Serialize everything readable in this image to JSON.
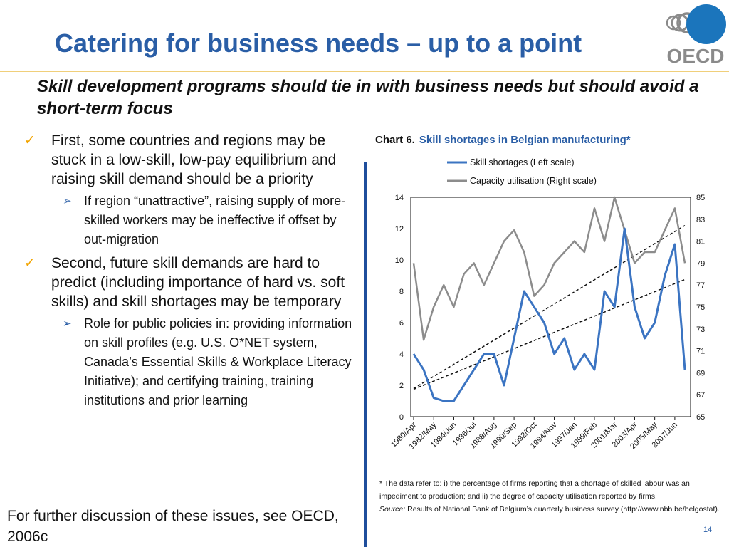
{
  "header": {
    "title": "Catering for business needs – up to a point",
    "logo_text": "OECD"
  },
  "subtitle": "Skill development programs should tie in with business needs but should avoid a short-term focus",
  "bullets": [
    {
      "text": "First, some countries and regions may be stuck in a low-skill, low-pay equilibrium and raising skill demand should be a priority",
      "sub": [
        "If region “unattractive”, raising supply of more-skilled workers may be ineffective if offset by out-migration"
      ]
    },
    {
      "text": "Second, future skill demands are hard to predict (including importance of hard vs. soft skills) and skill shortages may be temporary",
      "sub": [
        "Role for public policies in: providing information on skill profiles (e.g. U.S. O*NET system, Canada’s Essential Skills & Workplace Literacy Initiative); and certifying training, training institutions and prior learning"
      ]
    }
  ],
  "footer_note": "For further discussion of these issues, see OECD, 2006c",
  "chart_title": {
    "number": "Chart 6.",
    "text": "Skill shortages in Belgian manufacturing*"
  },
  "chart_data": {
    "type": "line",
    "x": [
      "1980/Apr",
      "1981/Apr",
      "1982/May",
      "1983/May",
      "1984/Jun",
      "1985/Jun",
      "1986/Jul",
      "1987/Jul",
      "1988/Aug",
      "1989/Aug",
      "1990/Sep",
      "1991/Sep",
      "1992/Oct",
      "1993/Oct",
      "1994/Nov",
      "1995/Nov",
      "1997/Jan",
      "1998/Jan",
      "1999/Feb",
      "2000/Feb",
      "2001/Mar",
      "2002/Mar",
      "2003/Apr",
      "2004/Apr",
      "2005/May",
      "2006/May",
      "2007/Jun",
      "2008/Jun"
    ],
    "x_tick_labels": [
      "1980/Apr",
      "1982/May",
      "1984/Jun",
      "1986/Jul",
      "1988/Aug",
      "1990/Sep",
      "1992/Oct",
      "1994/Nov",
      "1997/Jan",
      "1999/Feb",
      "2001/Mar",
      "2003/Apr",
      "2005/May",
      "2007/Jun"
    ],
    "series": [
      {
        "name": "Skill shortages (Left scale)",
        "axis": "left",
        "color": "#3b74c2",
        "values": [
          4,
          3,
          1.2,
          1,
          1,
          2,
          3,
          4,
          4,
          2,
          5,
          8,
          7,
          6,
          4,
          5,
          3,
          4,
          3,
          8,
          7,
          12,
          7,
          5,
          6,
          9,
          11,
          3
        ]
      },
      {
        "name": "Capacity utilisation (Right scale)",
        "axis": "right",
        "color": "#8c8c8c",
        "values": [
          79,
          72,
          75,
          77,
          75,
          78,
          79,
          77,
          79,
          81,
          82,
          80,
          76,
          77,
          79,
          80,
          81,
          80,
          84,
          81,
          85,
          82,
          79,
          80,
          80,
          82,
          84,
          79
        ]
      }
    ],
    "trend_lines": [
      {
        "axis": "left",
        "from": 1.8,
        "to": 12.2
      },
      {
        "axis": "right",
        "from": 67.5,
        "to": 77.5
      }
    ],
    "y_left": {
      "ticks": [
        0,
        2,
        4,
        6,
        8,
        10,
        12,
        14
      ],
      "lim": [
        0,
        14
      ]
    },
    "y_right": {
      "ticks": [
        65,
        67,
        69,
        71,
        73,
        75,
        77,
        79,
        81,
        83,
        85
      ],
      "lim": [
        65,
        85
      ]
    },
    "legend": "top"
  },
  "chart_notes": {
    "note": "* The data refer to: i) the percentage of firms reporting that a shortage of skilled labour was an impediment to production; and ii) the degree of capacity utilisation reported by firms.",
    "source_label": "Source:",
    "source_text": "Results of National Bank of Belgium’s quarterly business survey (http://www.nbb.be/belgostat)."
  },
  "page_number": "14",
  "colors": {
    "title": "#2a5ea6",
    "check": "#f2a400",
    "arrow": "#2a5ea6",
    "header_rule": "#f0cf7a",
    "vertical_bar": "#1f4e9c"
  }
}
